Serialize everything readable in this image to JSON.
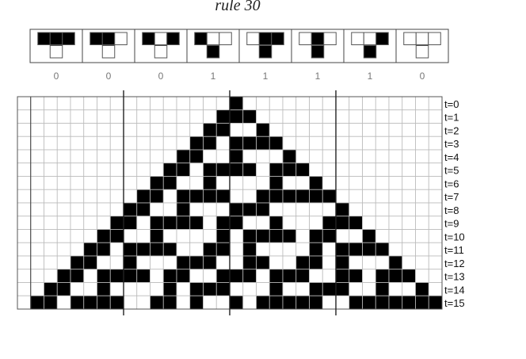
{
  "title": "rule 30",
  "rule_number": 30,
  "rule_table": [
    {
      "neighborhood": [
        1,
        1,
        1
      ],
      "output": 0,
      "label": "0"
    },
    {
      "neighborhood": [
        1,
        1,
        0
      ],
      "output": 0,
      "label": "0"
    },
    {
      "neighborhood": [
        1,
        0,
        1
      ],
      "output": 0,
      "label": "0"
    },
    {
      "neighborhood": [
        1,
        0,
        0
      ],
      "output": 1,
      "label": "1"
    },
    {
      "neighborhood": [
        0,
        1,
        1
      ],
      "output": 1,
      "label": "1"
    },
    {
      "neighborhood": [
        0,
        1,
        0
      ],
      "output": 1,
      "label": "1"
    },
    {
      "neighborhood": [
        0,
        0,
        1
      ],
      "output": 1,
      "label": "1"
    },
    {
      "neighborhood": [
        0,
        0,
        0
      ],
      "output": 0,
      "label": "0"
    }
  ],
  "grid": {
    "columns": 32,
    "start_column": 16,
    "time_labels": [
      "t=0",
      "t=1",
      "t=2",
      "t=3",
      "t=4",
      "t=5",
      "t=6",
      "t=7",
      "t=8",
      "t=9",
      "t=10",
      "t=11",
      "t=12",
      "t=13",
      "t=14",
      "t=15"
    ],
    "cell_color": "#000000",
    "empty_color": "#ffffff",
    "line_color": "#bbbbbb",
    "divider_color": "#222222"
  }
}
